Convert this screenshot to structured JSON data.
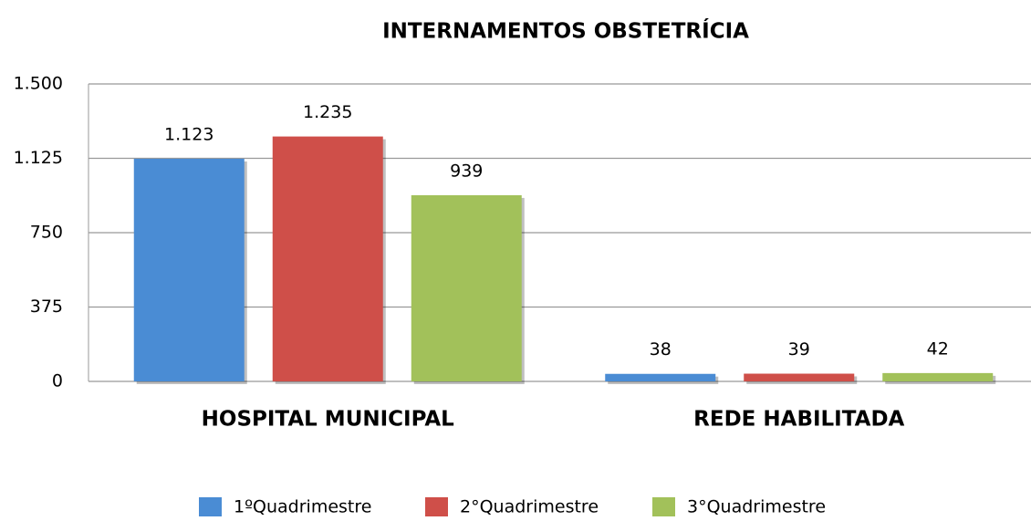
{
  "chart_data": {
    "type": "bar",
    "title": "INTERNAMENTOS OBSTETRÍCIA",
    "categories": [
      "HOSPITAL MUNICIPAL",
      "REDE HABILITADA"
    ],
    "series": [
      {
        "name": "1ºQuadrimestre",
        "color": "#4a8cd4",
        "values": [
          1123,
          38
        ],
        "value_labels": [
          "1.123",
          "38"
        ]
      },
      {
        "name": "2°Quadrimestre",
        "color": "#cf4f49",
        "values": [
          1235,
          39
        ],
        "value_labels": [
          "1.235",
          "39"
        ]
      },
      {
        "name": "3°Quadrimestre",
        "color": "#a2c15a",
        "values": [
          939,
          42
        ],
        "value_labels": [
          "939",
          "42"
        ]
      }
    ],
    "ylim": [
      0,
      1500
    ],
    "yticks": [
      0,
      375,
      750,
      {
        "value": 1125,
        "label": "1.125"
      },
      {
        "value": 1500,
        "label": "1.500"
      }
    ],
    "grid": true,
    "legend": "bottom"
  }
}
